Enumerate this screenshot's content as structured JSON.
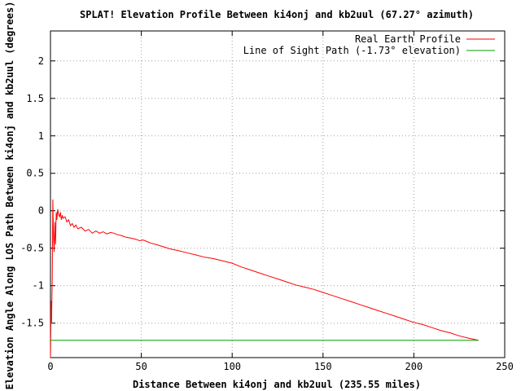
{
  "chart_data": {
    "type": "line",
    "title": "SPLAT! Elevation Profile Between ki4onj and kb2uul (67.27° azimuth)",
    "xlabel": "Distance Between ki4onj and kb2uul (235.55 miles)",
    "ylabel": "Elevation Angle Along LOS Path Between ki4onj and kb2uul (degrees)",
    "xlim": [
      0,
      250
    ],
    "ylim": [
      -1.96,
      2.4
    ],
    "xticks": [
      0,
      50,
      100,
      150,
      200,
      250
    ],
    "xtick_labels": [
      "0",
      "50",
      "100",
      "150",
      "200",
      "250"
    ],
    "yticks": [
      -1.5,
      -1,
      -0.5,
      0,
      0.5,
      1,
      1.5,
      2
    ],
    "ytick_labels": [
      "-1.5",
      "-1",
      "-0.5",
      "0",
      "0.5",
      "1",
      "1.5",
      "2"
    ],
    "grid": true,
    "legend_position": "top-right",
    "series": [
      {
        "name": "Real Earth Profile",
        "color": "#ff0000",
        "x": [
          0,
          0.3,
          0.6,
          1.0,
          1.3,
          1.6,
          2.0,
          2.4,
          2.8,
          3.2,
          3.5,
          4.0,
          4.5,
          5.0,
          5.5,
          6.0,
          6.5,
          7.0,
          8.0,
          9.0,
          10.0,
          11.0,
          12.0,
          13.0,
          14.0,
          15.0,
          17.0,
          19.0,
          21.0,
          23.0,
          25.0,
          27.0,
          29.0,
          31.0,
          33.0,
          35.0,
          37.0,
          39.0,
          41.0,
          43.0,
          45.0,
          47.0,
          49.0,
          51.0,
          53.0,
          55.0,
          58.0,
          62.0,
          66.0,
          70.0,
          75.0,
          80.0,
          85.0,
          90.0,
          95.0,
          100.0,
          105.0,
          110.0,
          115.0,
          120.0,
          125.0,
          130.0,
          135.0,
          140.0,
          145.0,
          150.0,
          155.0,
          160.0,
          165.0,
          170.0,
          175.0,
          180.0,
          185.0,
          190.0,
          195.0,
          200.0,
          205.0,
          210.0,
          215.0,
          220.0,
          225.0,
          230.0,
          235.55
        ],
        "values": [
          -1.96,
          -1.2,
          -1.5,
          -0.9,
          0.15,
          -0.3,
          -0.55,
          -0.15,
          -0.45,
          -0.02,
          -0.12,
          0.02,
          -0.05,
          -0.08,
          -0.02,
          -0.12,
          -0.06,
          -0.1,
          -0.08,
          -0.15,
          -0.12,
          -0.2,
          -0.17,
          -0.22,
          -0.19,
          -0.24,
          -0.22,
          -0.27,
          -0.25,
          -0.3,
          -0.27,
          -0.3,
          -0.28,
          -0.31,
          -0.29,
          -0.3,
          -0.32,
          -0.33,
          -0.35,
          -0.36,
          -0.37,
          -0.38,
          -0.4,
          -0.39,
          -0.41,
          -0.43,
          -0.45,
          -0.48,
          -0.51,
          -0.53,
          -0.56,
          -0.59,
          -0.62,
          -0.64,
          -0.67,
          -0.7,
          -0.75,
          -0.79,
          -0.83,
          -0.87,
          -0.91,
          -0.95,
          -0.99,
          -1.02,
          -1.05,
          -1.09,
          -1.13,
          -1.17,
          -1.21,
          -1.25,
          -1.29,
          -1.33,
          -1.37,
          -1.41,
          -1.45,
          -1.49,
          -1.52,
          -1.56,
          -1.6,
          -1.63,
          -1.67,
          -1.7,
          -1.73
        ]
      },
      {
        "name": "Line of Sight Path (-1.73° elevation)",
        "color": "#00a000",
        "x": [
          0,
          235.55
        ],
        "values": [
          -1.73,
          -1.73
        ]
      }
    ]
  }
}
